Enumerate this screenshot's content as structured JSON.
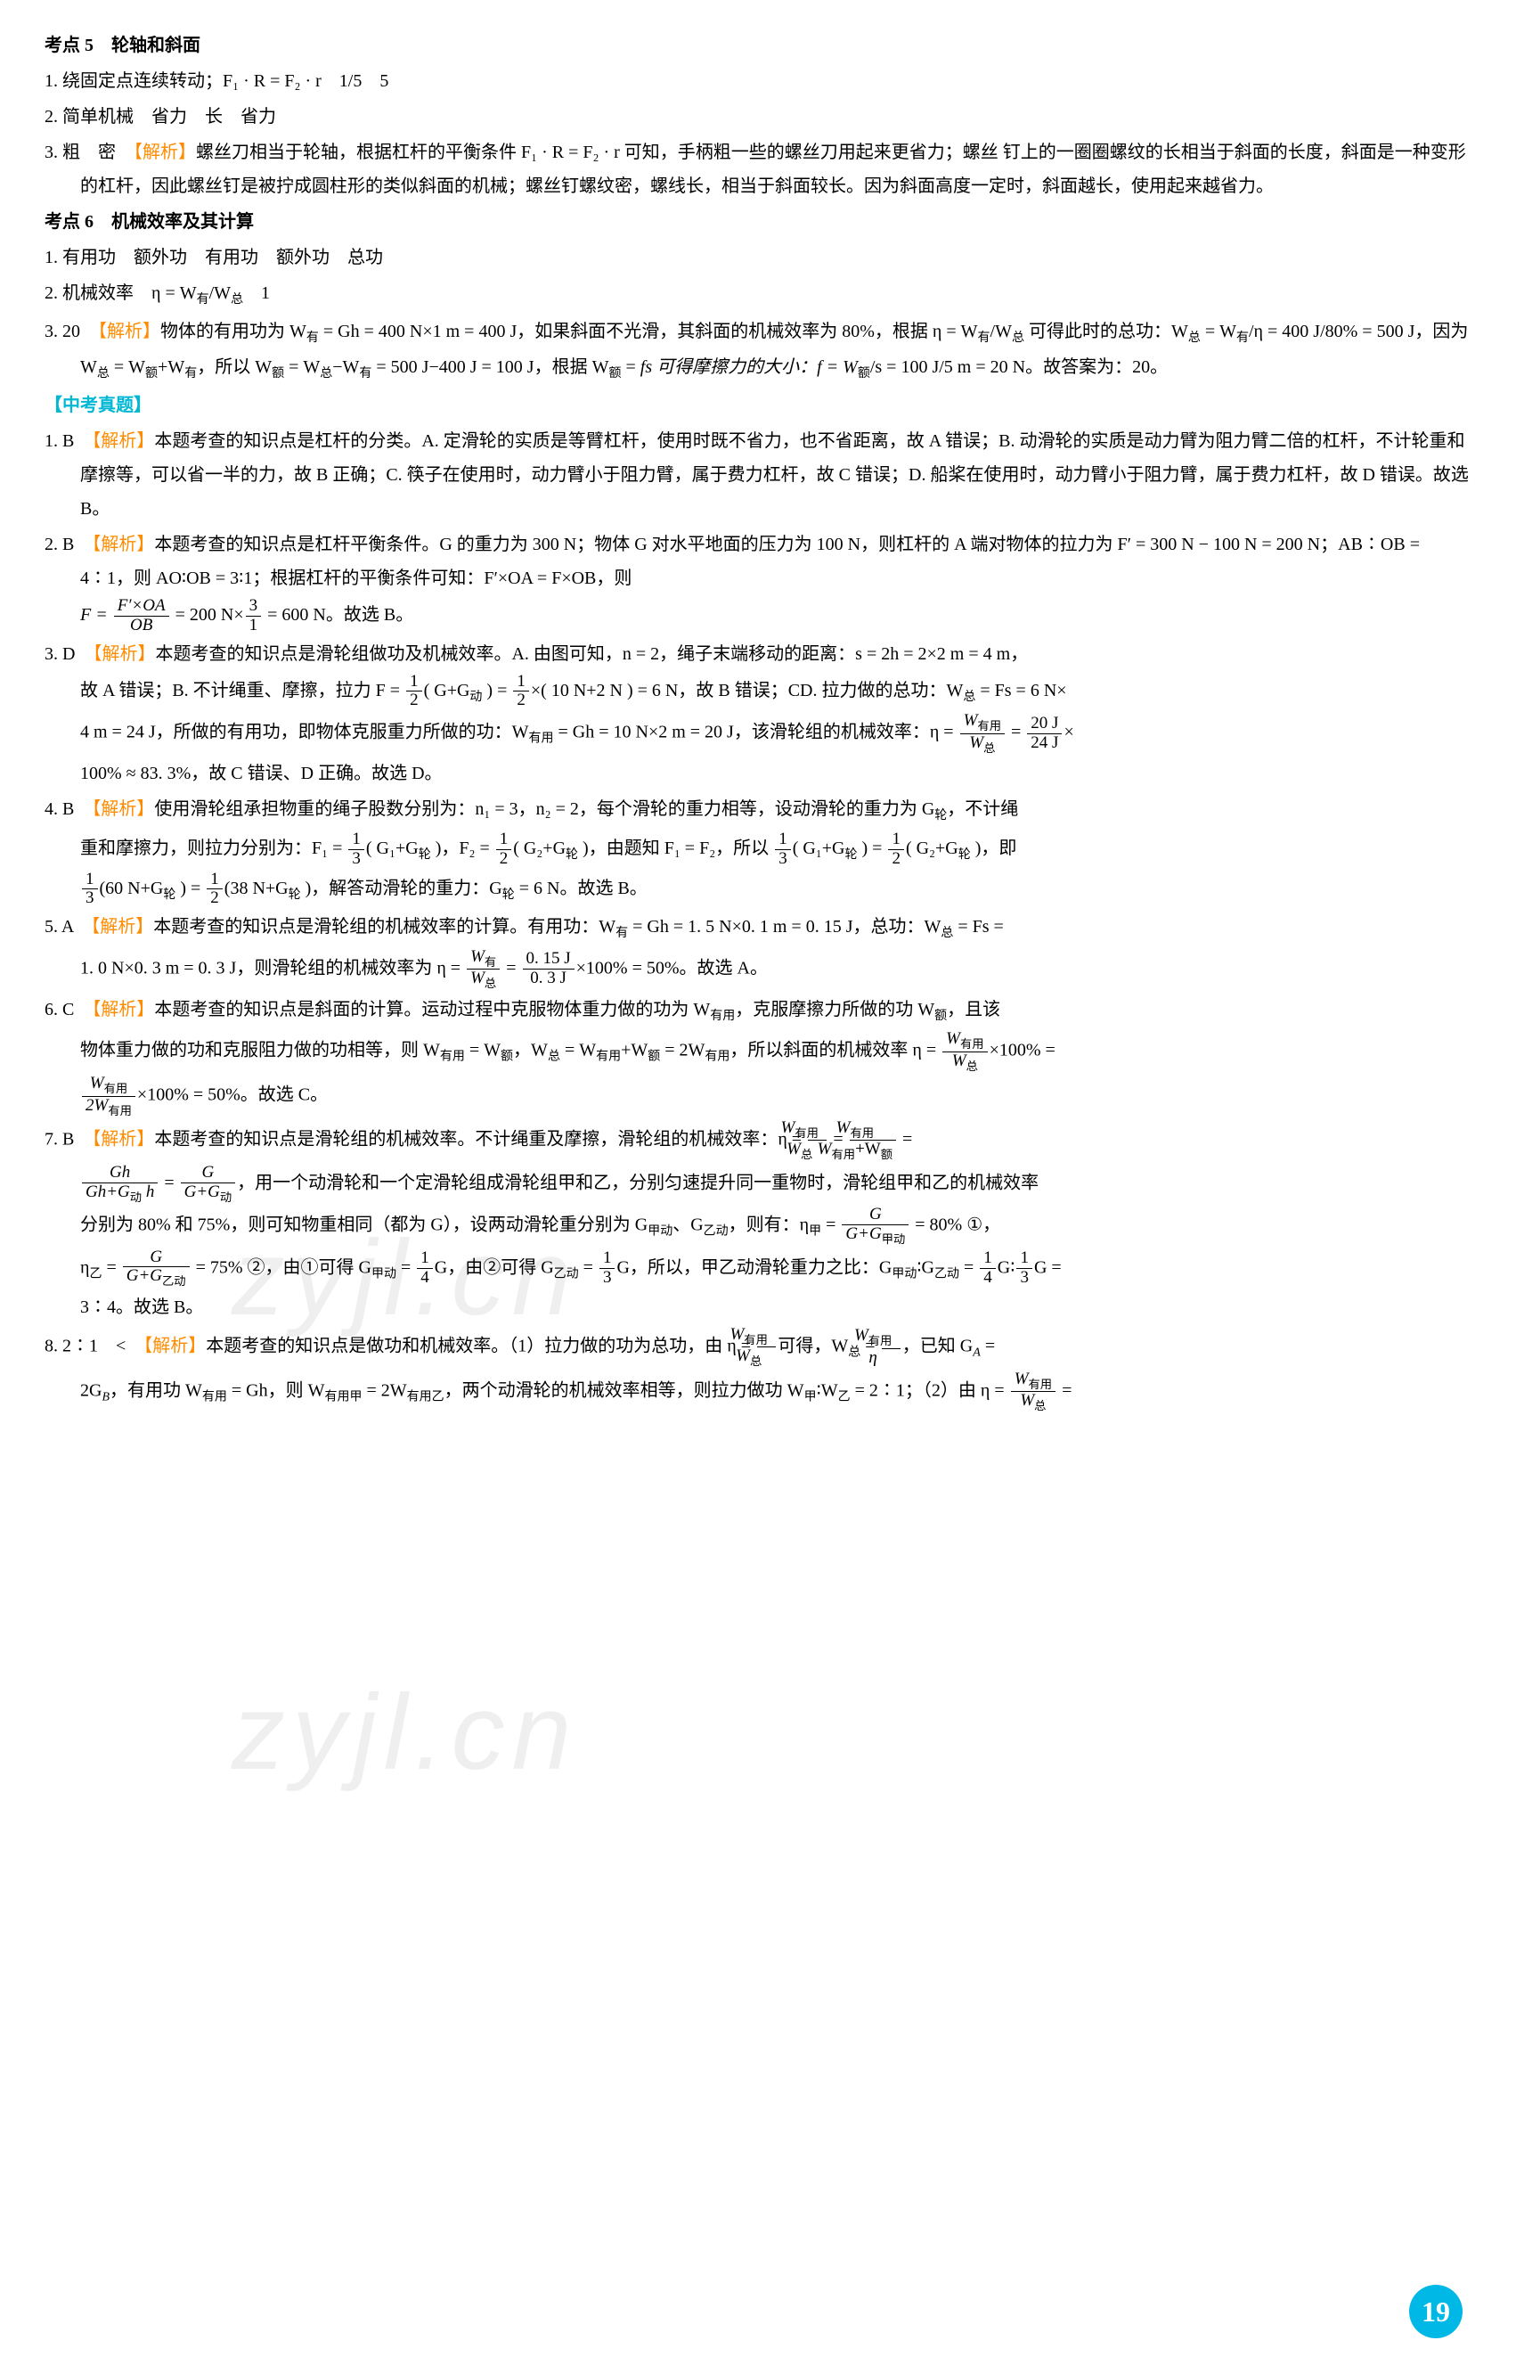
{
  "colors": {
    "cyan": "#00b8d4",
    "orange": "#ff8c00",
    "text": "#000000",
    "bg": "#ffffff",
    "badge": "#00b8e6",
    "watermark": "rgba(120,120,120,0.12)"
  },
  "watermark_text": "zyjl.cn",
  "page_number": "19",
  "sec5": {
    "title": "考点 5　轮轴和斜面",
    "l1": "1. 绕固定点连续转动；F₁ · R = F₂ · r　1/5　5",
    "l2": "2. 简单机械　省力　长　省力",
    "l3a": "3. 粗　密　",
    "l3b": "【解析】",
    "l3c": "螺丝刀相当于轮轴，根据杠杆的平衡条件 F₁ · R = F₂ · r 可知，手柄粗一些的螺丝刀用起来更省力；螺丝",
    "l3d": "钉上的一圈圈螺纹的长相当于斜面的长度，斜面是一种变形的杠杆，因此螺丝钉是被拧成圆柱形的类似斜面的机械；螺丝钉螺纹密，螺线长，相当于斜面较长。因为斜面高度一定时，斜面越长，使用起来越省力。"
  },
  "sec6": {
    "title": "考点 6　机械效率及其计算",
    "l1": "1. 有用功　额外功　有用功　额外功　总功",
    "l2a": "2. 机械效率　η = W",
    "l2b": "/W",
    "l2c": "　1",
    "l3a": "3. 20　",
    "l3b": "【解析】",
    "l3c1": "物体的有用功为 W",
    "l3c2": " = Gh = 400 N×1 m = 400 J，如果斜面不光滑，其斜面的机械效率为 80%，根据 η = W",
    "l3c3": "/W",
    "l3d1": "可得此时的总功：W",
    "l3d2": " = W",
    "l3d3": "/η = 400 J/80% = 500 J，因为 W",
    "l3d4": " = W",
    "l3d5": "+W",
    "l3d6": "，所以 W",
    "l3d7": " = W",
    "l3d8": "−W",
    "l3d9": " = 500 J−400 J = 100 J，根据 W",
    "l3d10": " = ",
    "l3e1": "fs 可得摩擦力的大小：f = W",
    "l3e2": "/s = 100 J/5 m = 20 N。故答案为：20。"
  },
  "zhenti": "【中考真题】",
  "q1": {
    "a": "1. B　",
    "b": "【解析】",
    "c": "本题考查的知识点是杠杆的分类。A. 定滑轮的实质是等臂杠杆，使用时既不省力，也不省距离，故 A 错误；B. 动滑轮的实质是动力臂为阻力臂二倍的杠杆，不计轮重和摩擦等，可以省一半的力，故 B 正确；C. 筷子在使用时，动力臂小于阻力臂，属于费力杠杆，故 C 错误；D. 船桨在使用时，动力臂小于阻力臂，属于费力杠杆，故 D 错误。故选 B。"
  },
  "q2": {
    "a": "2. B　",
    "b": "【解析】",
    "c": "本题考查的知识点是杠杆平衡条件。G 的重力为 300 N；物体 G 对水平地面的压力为 100 N，则杠杆的 A 端对物体的拉力为 F′ = 300 N − 100 N = 200 N；AB∶OB = 4∶1，则 AO∶OB = 3∶1；根据杠杆的平衡条件可知：F′×OA = F×OB，则",
    "d1": "F = ",
    "d2": " = 200 N×",
    "d3": " = 600 N。故选 B。",
    "frac1n": "F′×OA",
    "frac1d": "OB",
    "frac2n": "3",
    "frac2d": "1"
  },
  "q3": {
    "a": "3. D　",
    "b": "【解析】",
    "c": "本题考查的知识点是滑轮组做功及机械效率。A. 由图可知，n = 2，绳子末端移动的距离：s = 2h = 2×2 m = 4 m，",
    "d1": "故 A 错误；B. 不计绳重、摩擦，拉力 F = ",
    "d2": "( G+G",
    "d3": " ) = ",
    "d4": "×( 10 N+2 N ) = 6 N，故 B 错误；CD. 拉力做的总功：W",
    "d5": " = Fs = 6 N×",
    "frac1n": "1",
    "frac1d": "2",
    "e1": "4 m = 24 J，所做的有用功，即物体克服重力所做的功：W",
    "e2": " = Gh = 10 N×2 m = 20 J，该滑轮组的机械效率：η = ",
    "e3": " = ",
    "e4": "×",
    "frac3na": "W",
    "frac3nb": "有用",
    "frac3d": "W",
    "frac3db": "总",
    "frac4n": "20 J",
    "frac4d": "24 J",
    "f": "100% ≈ 83. 3%，故 C 错误、D 正确。故选 D。"
  },
  "q4": {
    "a": "4. B　",
    "b": "【解析】",
    "c": "使用滑轮组承担物重的绳子股数分别为：n₁ = 3，n₂ = 2，每个滑轮的重力相等，设动滑轮的重力为 G",
    "c2": "，不计绳",
    "d1": "重和摩擦力，则拉力分别为：F₁ = ",
    "d2": "( G₁+G",
    "d3": " )，F₂ = ",
    "d4": "( G₂+G",
    "d5": " )，由题知 F₁ = F₂，所以 ",
    "d6": "( G₁+G",
    "d7": " ) = ",
    "d8": "( G₂+G",
    "d9": " )，即",
    "frac1n": "1",
    "frac1d": "3",
    "frac2n": "1",
    "frac2d": "2",
    "e1": "(60 N+G",
    "e2": " ) = ",
    "e3": "(38 N+G",
    "e4": " )，解答动滑轮的重力：G",
    "e5": " = 6 N。故选 B。"
  },
  "q5": {
    "a": "5. A　",
    "b": "【解析】",
    "c1": "本题考查的知识点是滑轮组的机械效率的计算。有用功：W",
    "c2": " = Gh = 1. 5 N×0. 1 m = 0. 15 J，总功：W",
    "c3": " = Fs = ",
    "d1": "1. 0 N×0. 3 m = 0. 3 J，则滑轮组的机械效率为 η = ",
    "d2": " = ",
    "d3": "×100% = 50%。故选 A。",
    "frac1na": "W",
    "frac1nb": "有",
    "frac1d": "W",
    "frac1db": "总",
    "frac2n": "0. 15 J",
    "frac2d": "0. 3 J"
  },
  "q6": {
    "a": "6. C　",
    "b": "【解析】",
    "c1": "本题考查的知识点是斜面的计算。运动过程中克服物体重力做的功为 W",
    "c2": "，克服摩擦力所做的功 W",
    "c3": "，且该",
    "d1": "物体重力做的功和克服阻力做的功相等，则 W",
    "d2": " = W",
    "d3": "，W",
    "d4": " = W",
    "d5": "+W",
    "d6": " = 2W",
    "d7": "，所以斜面的机械效率 η = ",
    "d8": "×100% = ",
    "frac1na": "W",
    "frac1nb": "有用",
    "frac1d": "W",
    "frac1db": "总",
    "e1": "×100% = 50%。故选 C。",
    "frac2na": "W",
    "frac2nb": "有用",
    "frac2d": "2W",
    "frac2db": "有用"
  },
  "q7": {
    "a": "7. B　",
    "b": "【解析】",
    "c1": "本题考查的知识点是滑轮组的机械效率。不计绳重及摩擦，滑轮组的机械效率：η = ",
    "c2": " = ",
    "c3": " = ",
    "frac1na": "W",
    "frac1nb": "有用",
    "frac1d": "W",
    "frac1db": "总",
    "frac2na": "W",
    "frac2nb": "有用",
    "frac2da": "W",
    "frac2db": "有用",
    "frac2dc": "+W",
    "frac2dd": "额",
    "d1": " = ",
    "d2": "，用一个动滑轮和一个定滑轮组成滑轮组甲和乙，分别匀速提升同一重物时，滑轮组甲和乙的机械效率",
    "frac3n": "Gh",
    "frac3da": "Gh+G",
    "frac3db": "动",
    "frac3dc": " h",
    "frac4n": "G",
    "frac4da": "G+G",
    "frac4db": "动",
    "e1": "分别为 80% 和 75%，则可知物重相同（都为 G），设两动滑轮重分别为 G",
    "e2": "、G",
    "e3": "，则有：η",
    "e4": " = ",
    "e5": " = 80% ①，",
    "frac5n": "G",
    "frac5da": "G+G",
    "frac5db": "甲动",
    "f1": "η",
    "f2": " = ",
    "f3": " = 75% ②，由①可得 G",
    "f4": " = ",
    "f5": "G，由②可得 G",
    "f6": " = ",
    "f7": "G，所以，甲乙动滑轮重力之比：G",
    "f8": "∶G",
    "f9": " = ",
    "f10": "G∶",
    "f11": "G = ",
    "frac6n": "G",
    "frac6da": "G+G",
    "frac6db": "乙动",
    "frac7n": "1",
    "frac7d": "4",
    "frac8n": "1",
    "frac8d": "3",
    "g": "3∶4。故选 B。"
  },
  "q8": {
    "a": "8. 2∶1　<　",
    "b": "【解析】",
    "c1": "本题考查的知识点是做功和机械效率。（1）拉力做的功为总功，由 η = ",
    "c2": "可得，W",
    "c3": " = ",
    "c4": "，已知 G",
    "c5": " = ",
    "frac1na": "W",
    "frac1nb": "有用",
    "frac1d": "W",
    "frac1db": "总",
    "frac2na": "W",
    "frac2nb": "有用",
    "frac2d": "η",
    "d1": "2G",
    "d2": "，有用功 W",
    "d3": " = Gh，则 W",
    "d4": " = 2W",
    "d5": "，两个动滑轮的机械效率相等，则拉力做功 W",
    "d6": "∶W",
    "d7": " = 2∶1；（2）由 η = ",
    "d8": " = ",
    "frac3na": "W",
    "frac3nb": "有用",
    "frac3d": "W",
    "frac3db": "总"
  },
  "sub": {
    "you": "有",
    "zong": "总",
    "e": "额",
    "youyong": "有用",
    "lun": "轮",
    "dong": "动",
    "jia": "甲",
    "yi": "乙",
    "jiadong": "甲动",
    "yidong": "乙动",
    "A": "A",
    "B": "B",
    "jialabel": "甲",
    "yilabel": "乙",
    "youyongjia": "有用甲",
    "youyongyi": "有用乙"
  }
}
